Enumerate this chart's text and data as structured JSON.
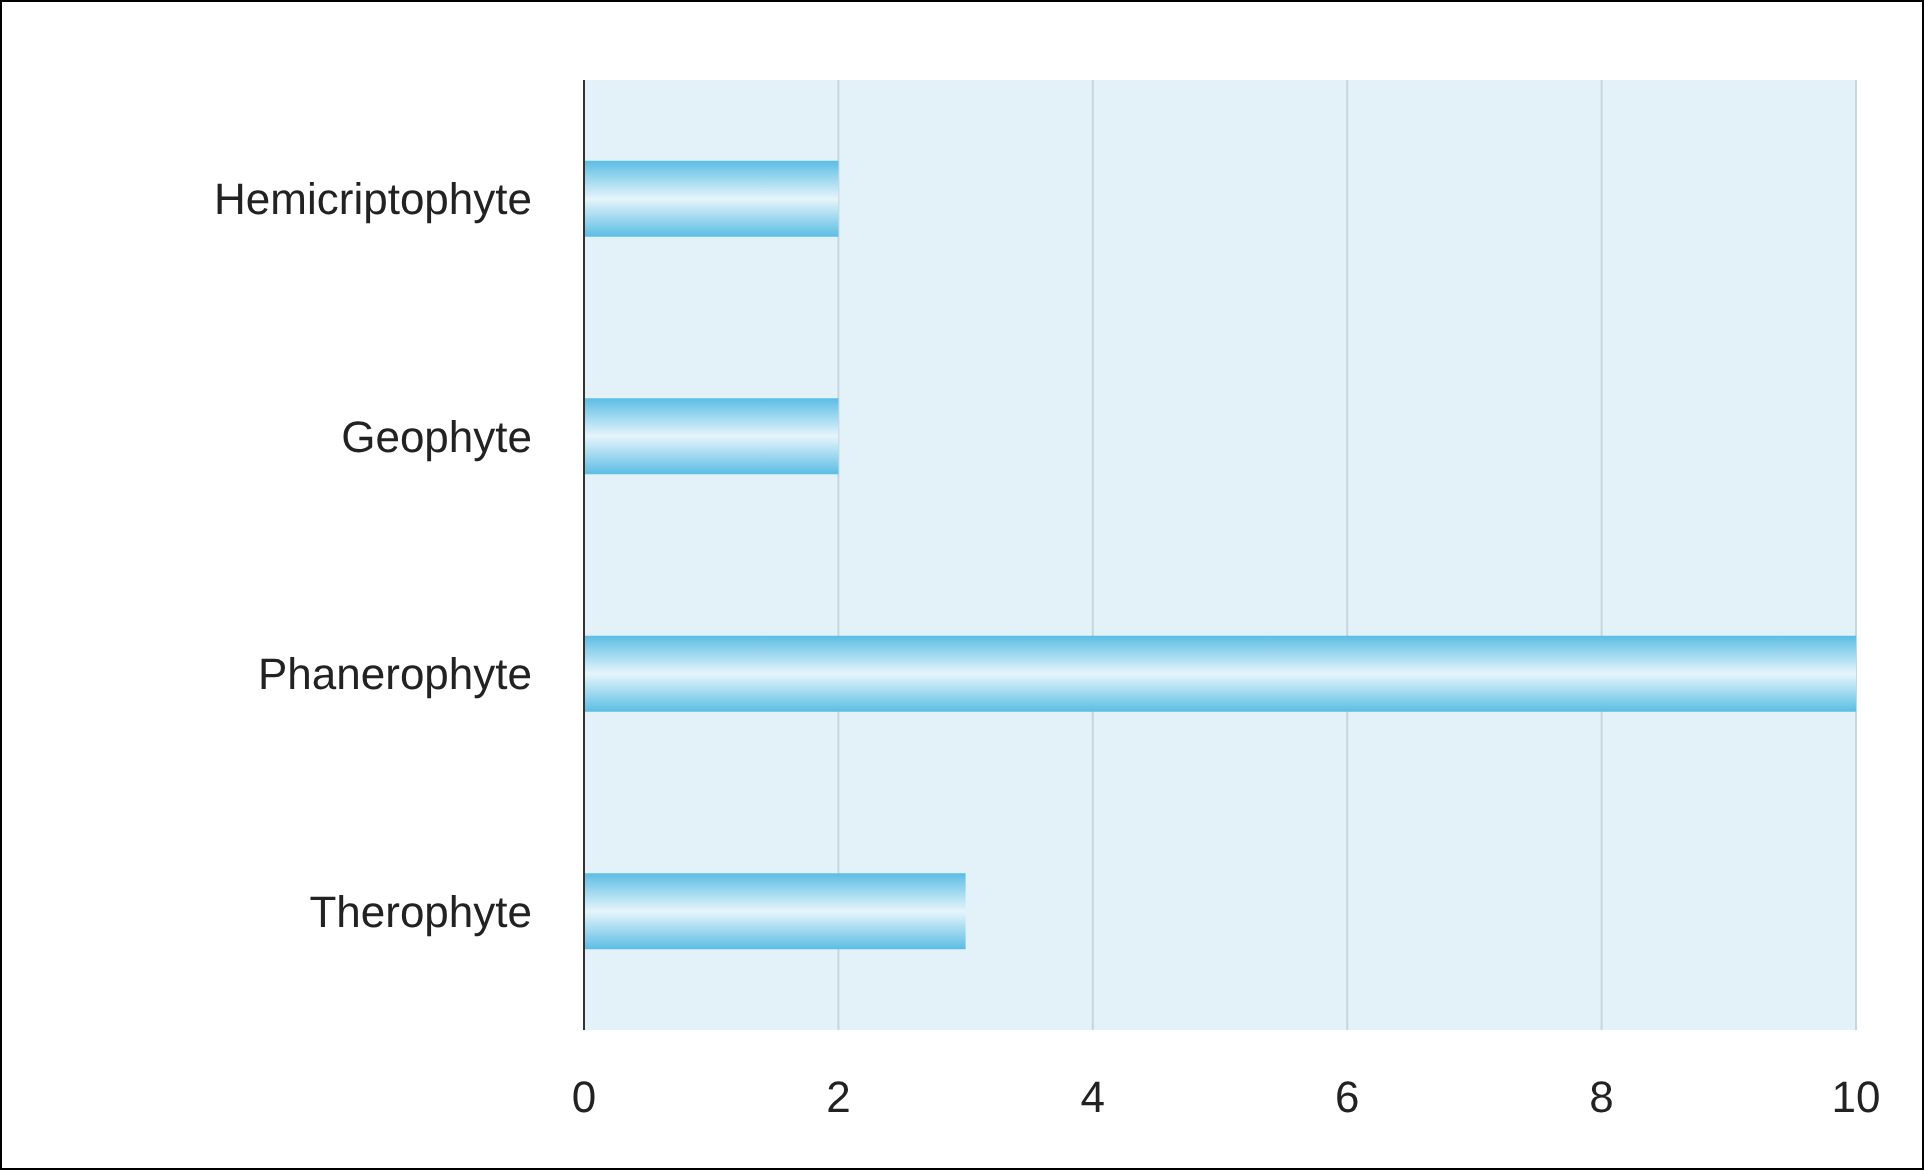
{
  "chart_data": {
    "type": "bar",
    "orientation": "horizontal",
    "categories": [
      "Hemicriptophyte",
      "Geophyte",
      "Phanerophyte",
      "Therophyte"
    ],
    "values": [
      2,
      2,
      10,
      3
    ],
    "color": "#5bbde4",
    "xlim": [
      0,
      10
    ],
    "xticks": [
      0,
      2,
      4,
      6,
      8,
      10
    ],
    "grid": "x"
  }
}
